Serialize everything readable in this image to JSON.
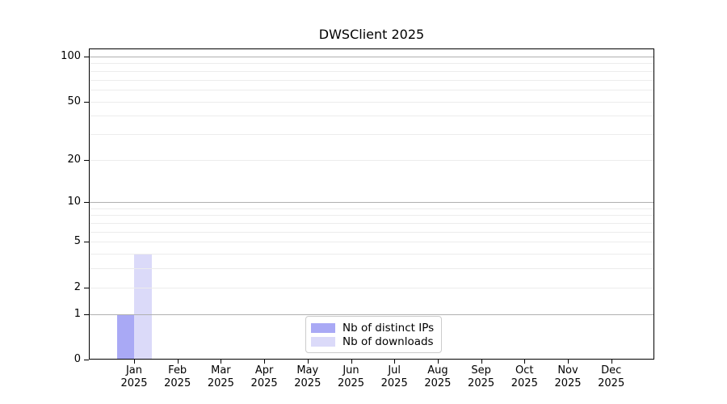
{
  "chart_data": {
    "type": "bar",
    "title": "DWSClient 2025",
    "year_label": "2025",
    "categories": [
      "Jan",
      "Feb",
      "Mar",
      "Apr",
      "May",
      "Jun",
      "Jul",
      "Aug",
      "Sep",
      "Oct",
      "Nov",
      "Dec"
    ],
    "series": [
      {
        "name": "Nb of distinct IPs",
        "color": "#a9a9f5",
        "values": [
          1,
          0,
          0,
          0,
          0,
          0,
          0,
          0,
          0,
          0,
          0,
          0
        ]
      },
      {
        "name": "Nb of downloads",
        "color": "#dbdaf9",
        "values": [
          4,
          0,
          0,
          0,
          0,
          0,
          0,
          0,
          0,
          0,
          0,
          0
        ]
      }
    ],
    "xlabel": "",
    "ylabel": "",
    "yscale": "log1p",
    "ylim": [
      0,
      100
    ],
    "yticks": [
      0,
      1,
      2,
      5,
      10,
      20,
      50,
      100
    ],
    "grid": {
      "major_values": [
        1,
        10,
        100
      ],
      "minor_values": [
        2,
        3,
        4,
        5,
        6,
        7,
        8,
        9,
        20,
        30,
        40,
        50,
        60,
        70,
        80,
        90
      ]
    },
    "legend_position": "lower-center-inside"
  },
  "colors": {
    "major_grid": "#b0b0b0",
    "minor_grid": "#ececec",
    "axis": "#000000",
    "legend_border": "#cccccc",
    "background": "#ffffff"
  }
}
